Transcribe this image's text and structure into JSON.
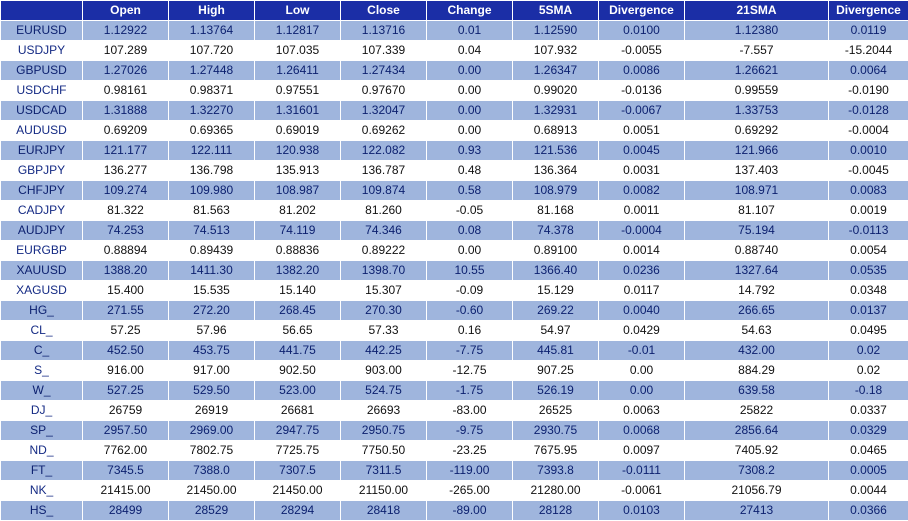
{
  "table": {
    "headers": [
      "",
      "Open",
      "High",
      "Low",
      "Close",
      "Change",
      "5SMA",
      "Divergence",
      "21SMA",
      "Divergence"
    ],
    "rows": [
      [
        "EURUSD",
        "1.12922",
        "1.13764",
        "1.12817",
        "1.13716",
        "0.01",
        "1.12590",
        "0.0100",
        "1.12380",
        "0.0119"
      ],
      [
        "USDJPY",
        "107.289",
        "107.720",
        "107.035",
        "107.339",
        "0.04",
        "107.932",
        "-0.0055",
        "-7.557",
        "-15.2044"
      ],
      [
        "GBPUSD",
        "1.27026",
        "1.27448",
        "1.26411",
        "1.27434",
        "0.00",
        "1.26347",
        "0.0086",
        "1.26621",
        "0.0064"
      ],
      [
        "USDCHF",
        "0.98161",
        "0.98371",
        "0.97551",
        "0.97670",
        "0.00",
        "0.99020",
        "-0.0136",
        "0.99559",
        "-0.0190"
      ],
      [
        "USDCAD",
        "1.31888",
        "1.32270",
        "1.31601",
        "1.32047",
        "0.00",
        "1.32931",
        "-0.0067",
        "1.33753",
        "-0.0128"
      ],
      [
        "AUDUSD",
        "0.69209",
        "0.69365",
        "0.69019",
        "0.69262",
        "0.00",
        "0.68913",
        "0.0051",
        "0.69292",
        "-0.0004"
      ],
      [
        "EURJPY",
        "121.177",
        "122.111",
        "120.938",
        "122.082",
        "0.93",
        "121.536",
        "0.0045",
        "121.966",
        "0.0010"
      ],
      [
        "GBPJPY",
        "136.277",
        "136.798",
        "135.913",
        "136.787",
        "0.48",
        "136.364",
        "0.0031",
        "137.403",
        "-0.0045"
      ],
      [
        "CHFJPY",
        "109.274",
        "109.980",
        "108.987",
        "109.874",
        "0.58",
        "108.979",
        "0.0082",
        "108.971",
        "0.0083"
      ],
      [
        "CADJPY",
        "81.322",
        "81.563",
        "81.202",
        "81.260",
        "-0.05",
        "81.168",
        "0.0011",
        "81.107",
        "0.0019"
      ],
      [
        "AUDJPY",
        "74.253",
        "74.513",
        "74.119",
        "74.346",
        "0.08",
        "74.378",
        "-0.0004",
        "75.194",
        "-0.0113"
      ],
      [
        "EURGBP",
        "0.88894",
        "0.89439",
        "0.88836",
        "0.89222",
        "0.00",
        "0.89100",
        "0.0014",
        "0.88740",
        "0.0054"
      ],
      [
        "XAUUSD",
        "1388.20",
        "1411.30",
        "1382.20",
        "1398.70",
        "10.55",
        "1366.40",
        "0.0236",
        "1327.64",
        "0.0535"
      ],
      [
        "XAGUSD",
        "15.400",
        "15.535",
        "15.140",
        "15.307",
        "-0.09",
        "15.129",
        "0.0117",
        "14.792",
        "0.0348"
      ],
      [
        "HG_",
        "271.55",
        "272.20",
        "268.45",
        "270.30",
        "-0.60",
        "269.22",
        "0.0040",
        "266.65",
        "0.0137"
      ],
      [
        "CL_",
        "57.25",
        "57.96",
        "56.65",
        "57.33",
        "0.16",
        "54.97",
        "0.0429",
        "54.63",
        "0.0495"
      ],
      [
        "C_",
        "452.50",
        "453.75",
        "441.75",
        "442.25",
        "-7.75",
        "445.81",
        "-0.01",
        "432.00",
        "0.02"
      ],
      [
        "S_",
        "916.00",
        "917.00",
        "902.50",
        "903.00",
        "-12.75",
        "907.25",
        "0.00",
        "884.29",
        "0.02"
      ],
      [
        "W_",
        "527.25",
        "529.50",
        "523.00",
        "524.75",
        "-1.75",
        "526.19",
        "0.00",
        "639.58",
        "-0.18"
      ],
      [
        "DJ_",
        "26759",
        "26919",
        "26681",
        "26693",
        "-83.00",
        "26525",
        "0.0063",
        "25822",
        "0.0337"
      ],
      [
        "SP_",
        "2957.50",
        "2969.00",
        "2947.75",
        "2950.75",
        "-9.75",
        "2930.75",
        "0.0068",
        "2856.64",
        "0.0329"
      ],
      [
        "ND_",
        "7762.00",
        "7802.75",
        "7725.75",
        "7750.50",
        "-23.25",
        "7675.95",
        "0.0097",
        "7405.92",
        "0.0465"
      ],
      [
        "FT_",
        "7345.5",
        "7388.0",
        "7307.5",
        "7311.5",
        "-119.00",
        "7393.8",
        "-0.0111",
        "7308.2",
        "0.0005"
      ],
      [
        "NK_",
        "21415.00",
        "21450.00",
        "21450.00",
        "21150.00",
        "-265.00",
        "21280.00",
        "-0.0061",
        "21056.79",
        "0.0044"
      ],
      [
        "HS_",
        "28499",
        "28529",
        "28294",
        "28418",
        "-89.00",
        "28128",
        "0.0103",
        "27413",
        "0.0366"
      ]
    ]
  },
  "colors": {
    "header_bg": "#1b2ea6",
    "row_alt_bg": "#9fb5dd",
    "row_bg": "#ffffff"
  }
}
